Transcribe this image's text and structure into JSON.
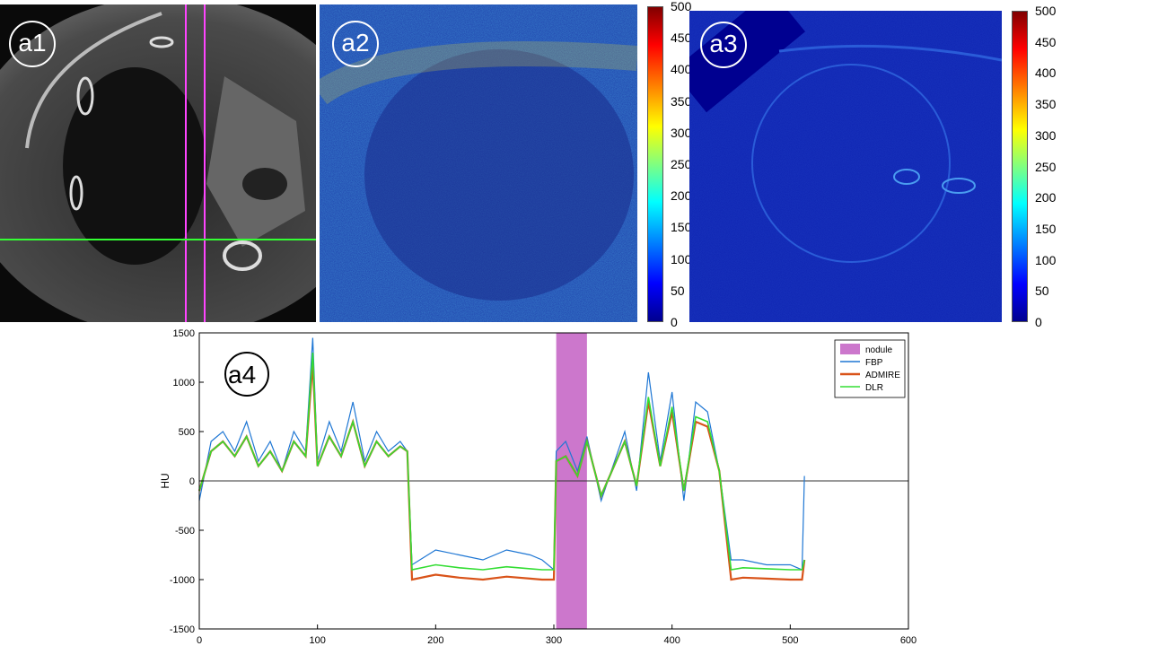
{
  "panels": {
    "a1": "a1",
    "a2": "a2",
    "a3": "a3",
    "a4": "a4"
  },
  "colorbar": {
    "ticks": [
      "500",
      "450",
      "400",
      "350",
      "300",
      "250",
      "200",
      "150",
      "100",
      "50",
      "0"
    ]
  },
  "colorbar2": {
    "ticks": [
      "500",
      "450",
      "400",
      "350",
      "300",
      "250",
      "200",
      "150",
      "100",
      "50",
      "0"
    ]
  },
  "colors": {
    "fbp": "#1f77d4",
    "admire": "#d95319",
    "dlr": "#33dd33",
    "nodule": "#cc77cc",
    "crosshair_vertical": "#ff44ff",
    "crosshair_horizontal": "#33ff33"
  },
  "chart_data": {
    "type": "line",
    "ylabel": "HU",
    "xlabel": "",
    "xlim": [
      0,
      600
    ],
    "ylim": [
      -1500,
      1500
    ],
    "xticks": [
      "0",
      "100",
      "200",
      "300",
      "400",
      "500",
      "600"
    ],
    "yticks": [
      "1500",
      "1000",
      "500",
      "0",
      "-500",
      "-1000",
      "-1500"
    ],
    "legend": [
      "nodule",
      "FBP",
      "ADMIRE",
      "DLR"
    ],
    "legend_position": "top-right",
    "nodule_range": [
      302,
      328
    ],
    "series": [
      {
        "name": "FBP",
        "x": [
          0,
          10,
          20,
          30,
          40,
          50,
          60,
          70,
          80,
          90,
          96,
          100,
          110,
          120,
          130,
          140,
          150,
          160,
          170,
          176,
          180,
          200,
          220,
          240,
          260,
          280,
          290,
          300,
          302,
          310,
          320,
          328,
          340,
          360,
          370,
          380,
          390,
          400,
          410,
          420,
          430,
          440,
          450,
          460,
          480,
          500,
          510,
          512
        ],
        "y": [
          -200,
          400,
          500,
          300,
          600,
          200,
          400,
          100,
          500,
          300,
          1450,
          200,
          600,
          300,
          800,
          200,
          500,
          300,
          400,
          300,
          -850,
          -700,
          -750,
          -800,
          -700,
          -750,
          -800,
          -900,
          300,
          400,
          100,
          450,
          -200,
          500,
          -100,
          1100,
          200,
          900,
          -200,
          800,
          700,
          100,
          -800,
          -800,
          -850,
          -850,
          -900,
          50
        ]
      },
      {
        "name": "ADMIRE",
        "x": [
          0,
          10,
          20,
          30,
          40,
          50,
          60,
          70,
          80,
          90,
          96,
          100,
          110,
          120,
          130,
          140,
          150,
          160,
          170,
          176,
          180,
          200,
          220,
          240,
          260,
          280,
          290,
          300,
          302,
          310,
          320,
          328,
          340,
          360,
          370,
          380,
          390,
          400,
          410,
          420,
          430,
          440,
          450,
          460,
          480,
          500,
          510,
          512
        ],
        "y": [
          -100,
          300,
          400,
          250,
          450,
          150,
          300,
          100,
          400,
          250,
          1200,
          150,
          450,
          250,
          600,
          150,
          400,
          250,
          350,
          300,
          -1000,
          -950,
          -980,
          -1000,
          -970,
          -990,
          -1000,
          -1000,
          200,
          250,
          50,
          400,
          -150,
          400,
          -50,
          800,
          150,
          700,
          -100,
          600,
          550,
          100,
          -1000,
          -980,
          -990,
          -1000,
          -1000,
          -800
        ]
      },
      {
        "name": "DLR",
        "x": [
          0,
          10,
          20,
          30,
          40,
          50,
          60,
          70,
          80,
          90,
          96,
          100,
          110,
          120,
          130,
          140,
          150,
          160,
          170,
          176,
          180,
          200,
          220,
          240,
          260,
          280,
          290,
          300,
          302,
          310,
          320,
          328,
          340,
          360,
          370,
          380,
          390,
          400,
          410,
          420,
          430,
          440,
          450,
          460,
          480,
          500,
          510,
          512
        ],
        "y": [
          -100,
          300,
          400,
          250,
          450,
          150,
          300,
          100,
          400,
          250,
          1300,
          150,
          450,
          250,
          600,
          150,
          400,
          250,
          350,
          300,
          -900,
          -850,
          -880,
          -900,
          -870,
          -890,
          -900,
          -900,
          200,
          250,
          50,
          400,
          -150,
          400,
          -50,
          850,
          150,
          750,
          -100,
          650,
          600,
          100,
          -900,
          -880,
          -890,
          -900,
          -900,
          -800
        ]
      }
    ]
  }
}
